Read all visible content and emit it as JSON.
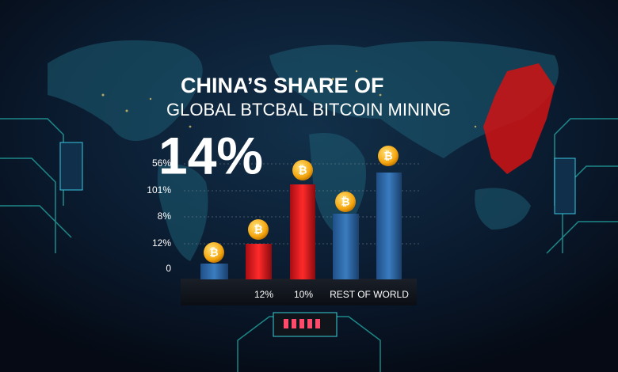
{
  "title": {
    "line1": "CHINA’S SHARE OF",
    "line2": "GLOBAL BTCBAL BITCOIN MINING"
  },
  "headline": "14%",
  "axis_labels": [
    "56%",
    "101%",
    "8%",
    "12%",
    "0"
  ],
  "base_labels": [
    "12%",
    "10%",
    "REST OF WORLD"
  ]
}
